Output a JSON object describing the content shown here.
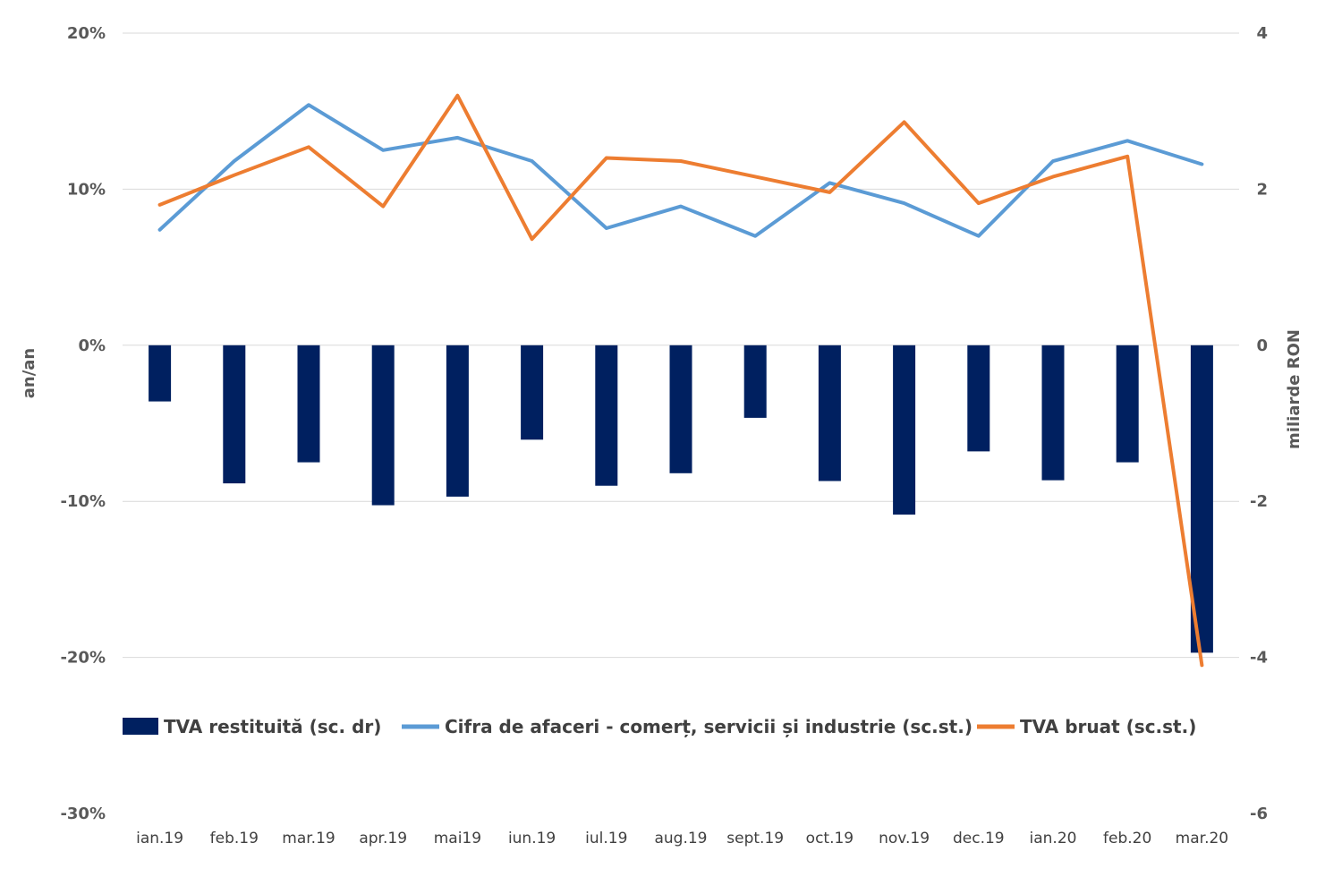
{
  "chart_data": {
    "type": "bar+line",
    "categories": [
      "ian.19",
      "feb.19",
      "mar.19",
      "apr.19",
      "mai19",
      "iun.19",
      "iul.19",
      "aug.19",
      "sept.19",
      "oct.19",
      "nov.19",
      "dec.19",
      "ian.20",
      "feb.20",
      "mar.20"
    ],
    "series": [
      {
        "name": "TVA restituită (sc. dr)",
        "type": "bar",
        "axis": "right",
        "color": "#002060",
        "values": [
          -0.72,
          -1.77,
          -1.5,
          -2.05,
          -1.94,
          -1.21,
          -1.8,
          -1.64,
          -0.93,
          -1.74,
          -2.17,
          -1.36,
          -1.73,
          -1.5,
          -3.94
        ]
      },
      {
        "name": "Cifra de afaceri - comerț, servicii și industrie (sc.st.)",
        "type": "line",
        "axis": "left",
        "color": "#5B9BD5",
        "values": [
          7.4,
          11.8,
          15.4,
          12.5,
          13.3,
          11.8,
          7.5,
          8.9,
          7.0,
          10.4,
          9.1,
          7.0,
          11.8,
          13.1,
          11.6
        ]
      },
      {
        "name": "TVA bruat (sc.st.)",
        "type": "line",
        "axis": "left",
        "color": "#ED7D31",
        "values": [
          9.0,
          10.9,
          12.7,
          8.9,
          16.0,
          6.8,
          12.0,
          11.8,
          10.8,
          9.8,
          14.3,
          9.1,
          10.8,
          12.1,
          -20.5
        ]
      }
    ],
    "y_left": {
      "label": "an/an",
      "lim": [
        -30,
        20
      ],
      "ticks": [
        20,
        10,
        0,
        -10,
        -20,
        -30
      ],
      "tick_labels": [
        "20%",
        "10%",
        "0%",
        "-10%",
        "-20%",
        "-30%"
      ]
    },
    "y_right": {
      "label": "miliarde RON",
      "lim": [
        -6,
        4
      ],
      "ticks": [
        4,
        2,
        0,
        -2,
        -4,
        -6
      ],
      "tick_labels": [
        "4",
        "2",
        "0",
        "-2",
        "-4",
        "-6"
      ]
    },
    "grid": true,
    "legend_position": "bottom-inside"
  }
}
